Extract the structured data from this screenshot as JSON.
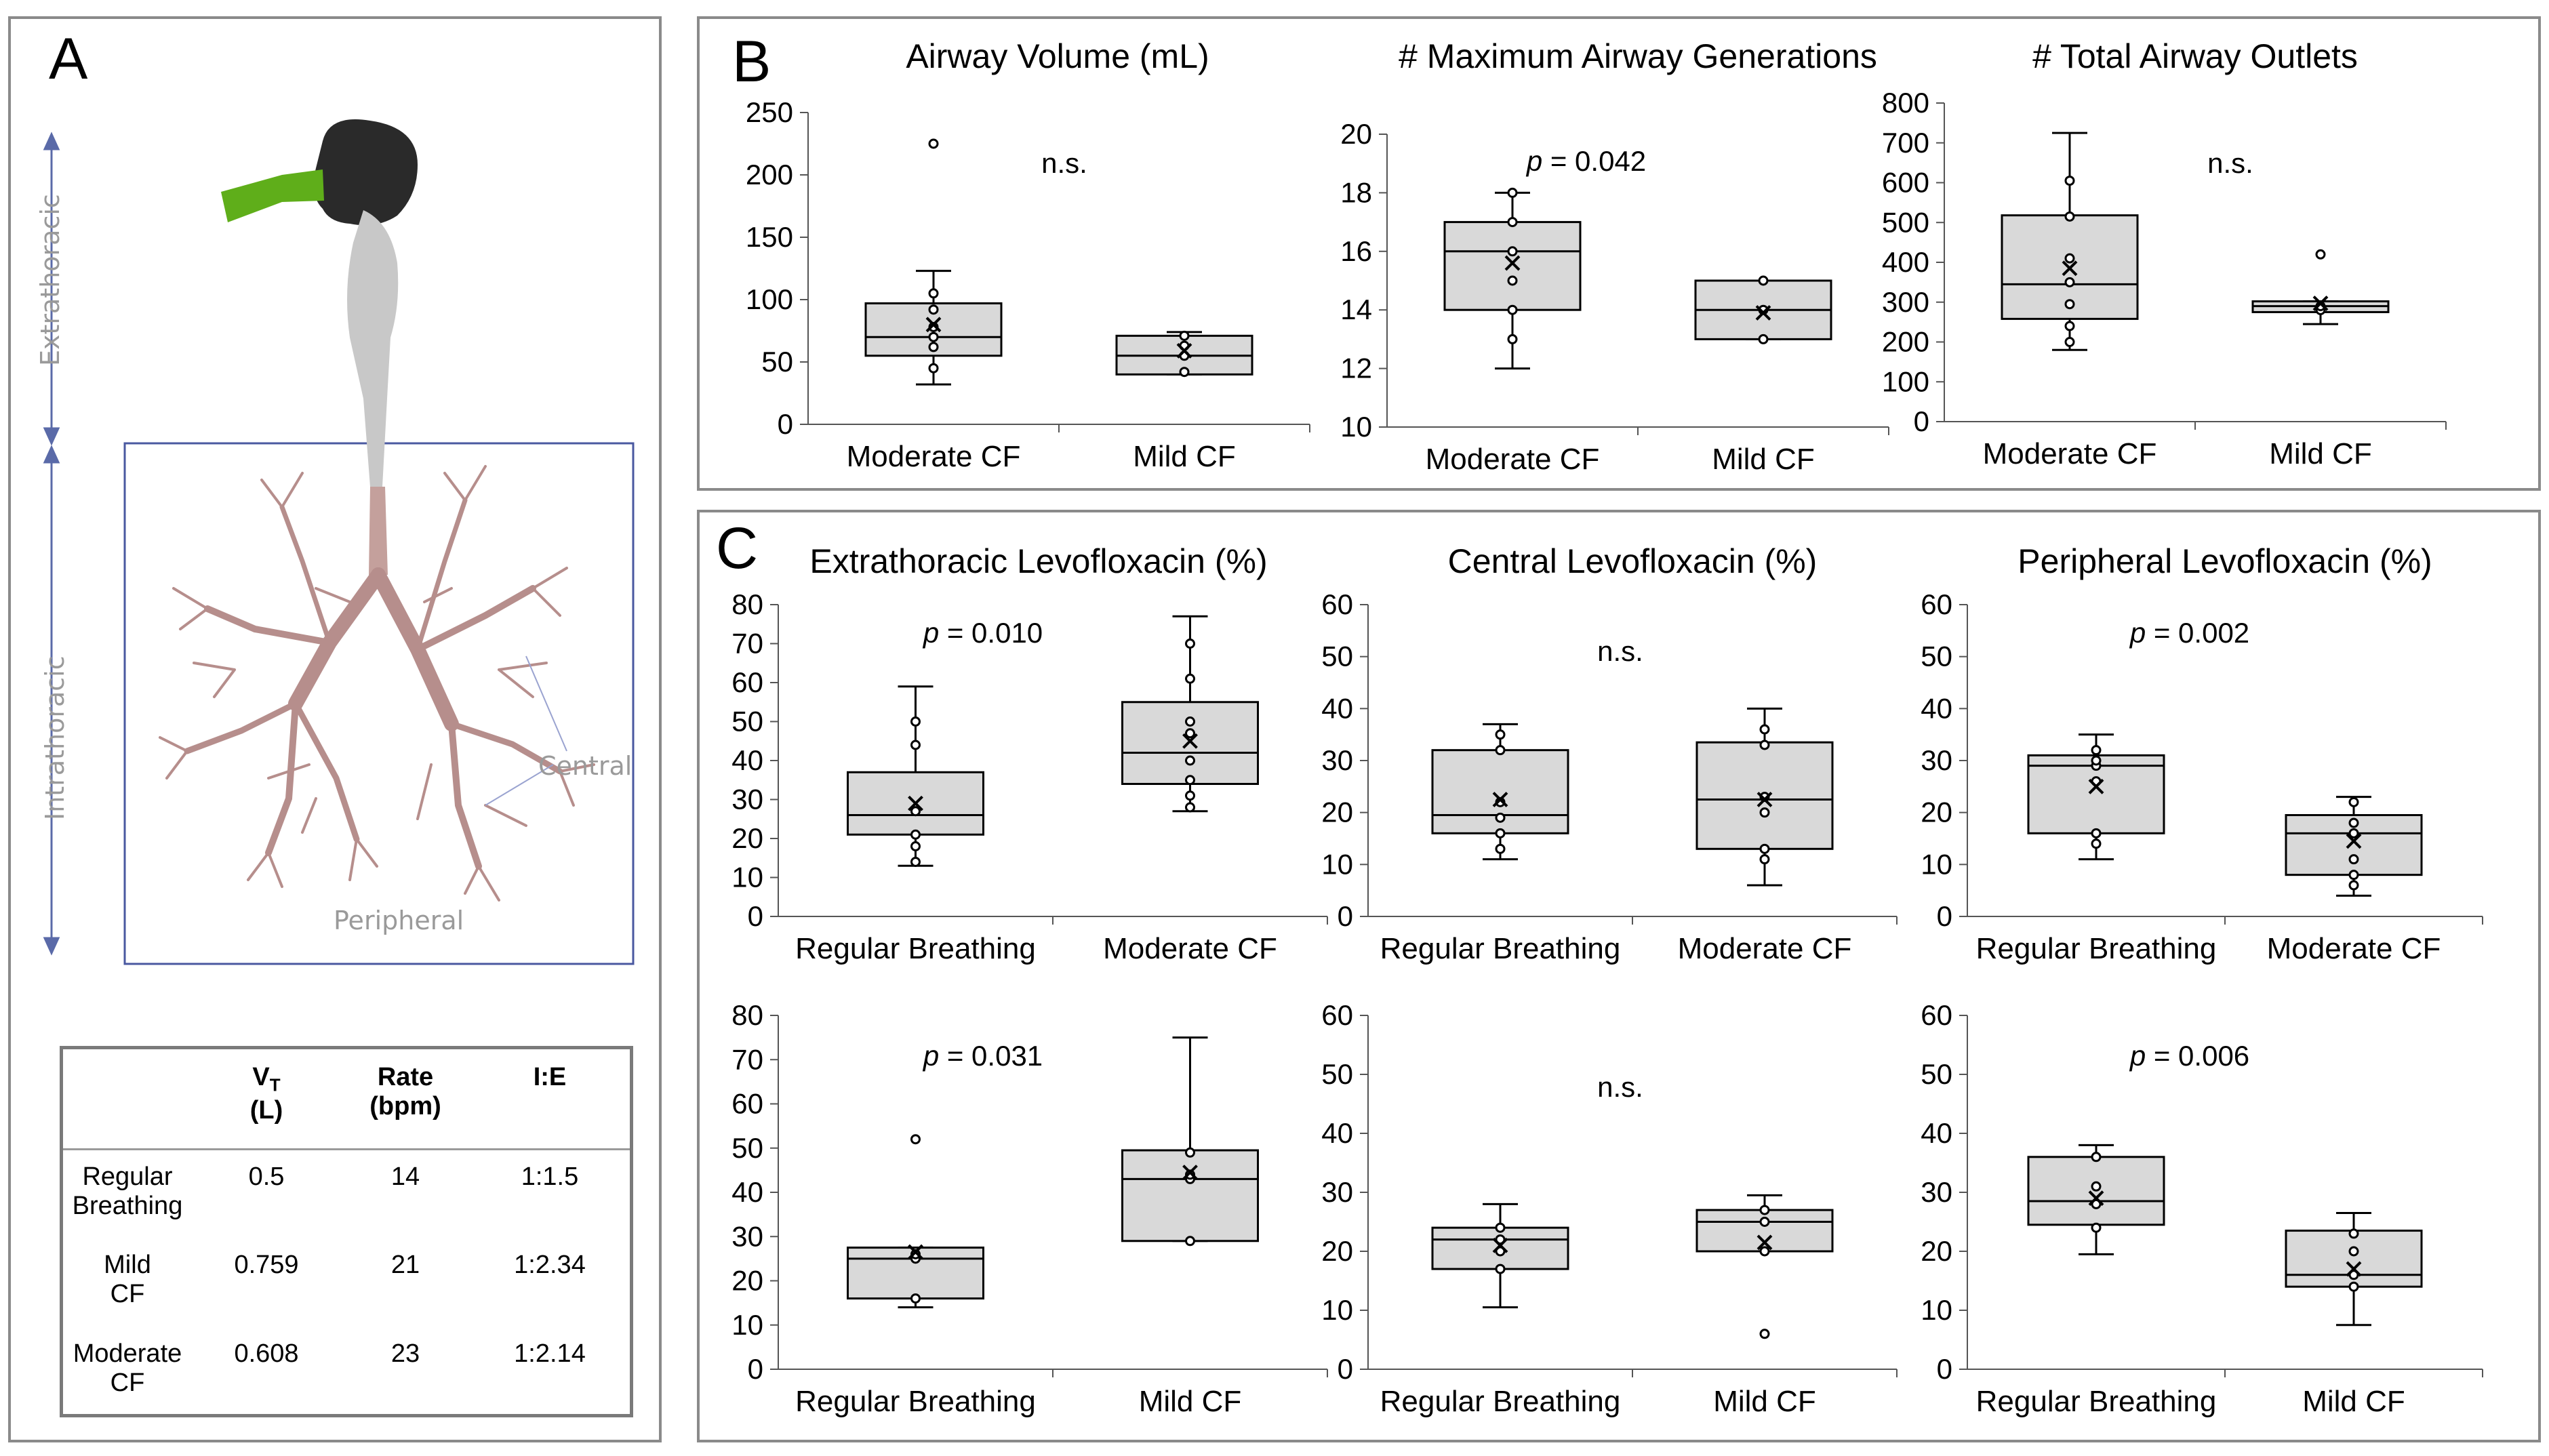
{
  "panel_a": {
    "label": "A",
    "regions": {
      "extrathoracic": "Extrathoracic",
      "intrathoracic": "Intrathoracic",
      "central": "Central",
      "peripheral": "Peripheral"
    },
    "table": {
      "headers": {
        "vt_main": "V",
        "vt_sub": "T",
        "vt_unit": "(L)",
        "rate": "Rate",
        "rate_unit": "(bpm)",
        "ie": "I:E"
      },
      "rows": [
        {
          "l1": "Regular",
          "l2": "Breathing",
          "vt": "0.5",
          "rate": "14",
          "ie": "1:1.5"
        },
        {
          "l1": "Mild",
          "l2": "CF",
          "vt": "0.759",
          "rate": "21",
          "ie": "1:2.34"
        },
        {
          "l1": "Moderate",
          "l2": "CF",
          "vt": "0.608",
          "rate": "23",
          "ie": "1:2.14"
        }
      ]
    }
  },
  "panel_b": {
    "label": "B"
  },
  "panel_c": {
    "label": "C"
  },
  "chart_data": [
    {
      "type": "box",
      "panel": "B",
      "title": "Airway Volume (mL)",
      "annotation": "n.s.",
      "ylim": [
        0,
        250
      ],
      "yticks": [
        0,
        50,
        100,
        150,
        200,
        250
      ],
      "categories": [
        "Moderate CF",
        "Mild CF"
      ],
      "boxes": [
        {
          "whisker_low": 32,
          "q1": 55,
          "median": 70,
          "q3": 97,
          "whisker_high": 123,
          "mean": 80,
          "points": [
            45,
            62,
            70,
            78,
            92,
            105,
            225
          ]
        },
        {
          "whisker_low": 40,
          "q1": 40,
          "median": 55,
          "q3": 71,
          "whisker_high": 74,
          "mean": 59,
          "points": [
            42,
            55,
            63,
            71
          ]
        }
      ]
    },
    {
      "type": "box",
      "panel": "B",
      "title": "# Maximum Airway Generations",
      "annotation_p": "p",
      "annotation": " = 0.042",
      "ylim": [
        10,
        20
      ],
      "yticks": [
        10,
        12,
        14,
        16,
        18,
        20
      ],
      "categories": [
        "Moderate CF",
        "Mild CF"
      ],
      "boxes": [
        {
          "whisker_low": 12,
          "q1": 14,
          "median": 16,
          "q3": 17,
          "whisker_high": 18,
          "mean": 15.6,
          "points": [
            13,
            14,
            15,
            16,
            17,
            18
          ]
        },
        {
          "whisker_low": 13,
          "q1": 13,
          "median": 14,
          "q3": 15,
          "whisker_high": 15,
          "mean": 13.9,
          "points": [
            13,
            14,
            15
          ]
        }
      ]
    },
    {
      "type": "box",
      "panel": "B",
      "title": "# Total Airway Outlets",
      "annotation": "n.s.",
      "ylim": [
        0,
        800
      ],
      "yticks": [
        0,
        100,
        200,
        300,
        400,
        500,
        600,
        700,
        800
      ],
      "categories": [
        "Moderate CF",
        "Mild CF"
      ],
      "boxes": [
        {
          "whisker_low": 180,
          "q1": 258,
          "median": 345,
          "q3": 518,
          "whisker_high": 725,
          "mean": 385,
          "points": [
            200,
            240,
            295,
            350,
            410,
            515,
            605
          ]
        },
        {
          "whisker_low": 245,
          "q1": 275,
          "median": 290,
          "q3": 302,
          "whisker_high": 302,
          "mean": 297,
          "points": [
            280,
            290,
            420
          ]
        }
      ]
    },
    {
      "type": "box",
      "panel": "C",
      "title": "Extrathoracic Levofloxacin (%)",
      "annotation_p": "p",
      "annotation": " = 0.010",
      "ylim": [
        0,
        80
      ],
      "yticks": [
        0,
        10,
        20,
        30,
        40,
        50,
        60,
        70,
        80
      ],
      "categories": [
        "Regular Breathing",
        "Moderate CF"
      ],
      "boxes": [
        {
          "whisker_low": 13,
          "q1": 21,
          "median": 26,
          "q3": 37,
          "whisker_high": 59,
          "mean": 29,
          "points": [
            14,
            18,
            21,
            27,
            44,
            50
          ]
        },
        {
          "whisker_low": 27,
          "q1": 34,
          "median": 42,
          "q3": 55,
          "whisker_high": 77,
          "mean": 45,
          "points": [
            28,
            31,
            35,
            40,
            47,
            50,
            61,
            70
          ]
        }
      ]
    },
    {
      "type": "box",
      "panel": "C",
      "title": "Central Levofloxacin (%)",
      "annotation": "n.s.",
      "ylim": [
        0,
        60
      ],
      "yticks": [
        0,
        10,
        20,
        30,
        40,
        50,
        60
      ],
      "categories": [
        "Regular Breathing",
        "Moderate CF"
      ],
      "boxes": [
        {
          "whisker_low": 11,
          "q1": 16,
          "median": 19.5,
          "q3": 32,
          "whisker_high": 37,
          "mean": 22.5,
          "points": [
            13,
            16,
            19,
            22,
            32,
            35
          ]
        },
        {
          "whisker_low": 6,
          "q1": 13,
          "median": 22.5,
          "q3": 33.5,
          "whisker_high": 40,
          "mean": 22.5,
          "points": [
            11,
            13,
            20,
            23,
            33,
            36
          ]
        }
      ]
    },
    {
      "type": "box",
      "panel": "C",
      "title": "Peripheral Levofloxacin (%)",
      "annotation_p": "p",
      "annotation": " = 0.002",
      "ylim": [
        0,
        60
      ],
      "yticks": [
        0,
        10,
        20,
        30,
        40,
        50,
        60
      ],
      "categories": [
        "Regular Breathing",
        "Moderate CF"
      ],
      "boxes": [
        {
          "whisker_low": 11,
          "q1": 16,
          "median": 29,
          "q3": 31,
          "whisker_high": 35,
          "mean": 25,
          "points": [
            14,
            16,
            26,
            29,
            30,
            32
          ]
        },
        {
          "whisker_low": 4,
          "q1": 8,
          "median": 16,
          "q3": 19.5,
          "whisker_high": 23,
          "mean": 14.5,
          "points": [
            6,
            8,
            11,
            16,
            18,
            22
          ]
        }
      ]
    },
    {
      "type": "box",
      "panel": "C",
      "title": "",
      "annotation_p": "p",
      "annotation": " = 0.031",
      "ylim": [
        0,
        80
      ],
      "yticks": [
        0,
        10,
        20,
        30,
        40,
        50,
        60,
        70,
        80
      ],
      "categories": [
        "Regular Breathing",
        "Mild CF"
      ],
      "boxes": [
        {
          "whisker_low": 14,
          "q1": 16,
          "median": 25,
          "q3": 27.5,
          "whisker_high": 27.5,
          "mean": 26.5,
          "points": [
            16,
            25,
            26,
            52
          ]
        },
        {
          "whisker_low": 29,
          "q1": 29,
          "median": 43,
          "q3": 49.5,
          "whisker_high": 75,
          "mean": 44.5,
          "points": [
            29,
            43,
            44,
            49
          ]
        }
      ]
    },
    {
      "type": "box",
      "panel": "C",
      "title": "",
      "annotation": "n.s.",
      "ylim": [
        0,
        60
      ],
      "yticks": [
        0,
        10,
        20,
        30,
        40,
        50,
        60
      ],
      "categories": [
        "Regular Breathing",
        "Mild CF"
      ],
      "boxes": [
        {
          "whisker_low": 10.5,
          "q1": 17,
          "median": 22,
          "q3": 24,
          "whisker_high": 28,
          "mean": 21,
          "points": [
            17,
            20,
            22,
            24
          ]
        },
        {
          "whisker_low": 20,
          "q1": 20,
          "median": 25,
          "q3": 27,
          "whisker_high": 29.5,
          "mean": 21.5,
          "points": [
            6,
            20,
            25,
            27
          ]
        }
      ]
    },
    {
      "type": "box",
      "panel": "C",
      "title": "",
      "annotation_p": "p",
      "annotation": " = 0.006",
      "ylim": [
        0,
        60
      ],
      "yticks": [
        0,
        10,
        20,
        30,
        40,
        50,
        60
      ],
      "categories": [
        "Regular Breathing",
        "Mild CF"
      ],
      "boxes": [
        {
          "whisker_low": 19.5,
          "q1": 24.5,
          "median": 28.5,
          "q3": 36,
          "whisker_high": 38,
          "mean": 29,
          "points": [
            24,
            28,
            31,
            36
          ]
        },
        {
          "whisker_low": 7.5,
          "q1": 14,
          "median": 16,
          "q3": 23.5,
          "whisker_high": 26.5,
          "mean": 17,
          "points": [
            14,
            16,
            20,
            23
          ]
        }
      ]
    }
  ]
}
